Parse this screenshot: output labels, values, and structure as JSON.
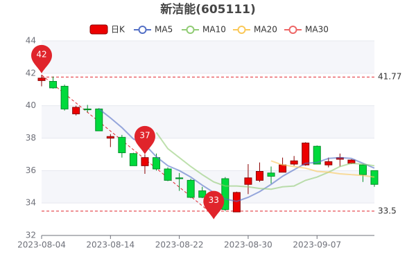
{
  "chart_data": {
    "type": "candlestick",
    "title": "新洁能(605111)",
    "categories": [
      "2023-08-04",
      null,
      null,
      null,
      null,
      null,
      "2023-08-14",
      null,
      null,
      null,
      null,
      null,
      "2023-08-22",
      null,
      null,
      null,
      null,
      null,
      "2023-08-30",
      null,
      null,
      null,
      null,
      null,
      "2023-09-07",
      null,
      null,
      null,
      null,
      null
    ],
    "candle": {
      "name": "日K",
      "up_color": "#ec0000",
      "down_color": "#00da3c",
      "up_border": "#8a0000",
      "down_border": "#008f28",
      "open": [
        41.55,
        41.5,
        41.2,
        39.5,
        39.8,
        39.8,
        38.0,
        38.05,
        37.05,
        36.3,
        36.8,
        36.1,
        35.55,
        35.4,
        34.75,
        34.35,
        35.5,
        33.45,
        35.15,
        35.4,
        35.85,
        35.9,
        36.4,
        36.35,
        37.5,
        36.35,
        36.7,
        36.45,
        36.35,
        36.0
      ],
      "close": [
        41.7,
        41.1,
        39.8,
        39.9,
        39.75,
        38.45,
        38.1,
        37.1,
        36.3,
        36.8,
        36.1,
        35.4,
        35.5,
        34.35,
        34.35,
        33.6,
        33.6,
        34.65,
        35.55,
        35.95,
        35.65,
        36.35,
        36.6,
        37.7,
        36.4,
        36.55,
        36.8,
        36.65,
        35.75,
        35.15
      ],
      "low": [
        41.2,
        41.05,
        39.7,
        39.4,
        39.6,
        38.45,
        37.45,
        36.8,
        36.3,
        35.8,
        36.0,
        35.35,
        34.75,
        34.3,
        34.3,
        33.25,
        33.5,
        33.45,
        34.55,
        35.3,
        35.2,
        35.9,
        36.3,
        36.3,
        36.4,
        36.2,
        36.25,
        36.4,
        35.3,
        35.0
      ],
      "high": [
        41.9,
        41.8,
        41.3,
        40.0,
        40.05,
        39.85,
        38.25,
        38.2,
        37.1,
        37.0,
        37.05,
        36.2,
        35.85,
        35.5,
        35.0,
        34.5,
        35.6,
        34.7,
        36.4,
        36.5,
        36.25,
        36.8,
        36.9,
        37.75,
        37.55,
        36.8,
        37.05,
        36.7,
        36.4,
        36.0
      ]
    },
    "series": [
      {
        "name": "MA5",
        "color": "#5470c6",
        "values": [
          null,
          null,
          null,
          null,
          null,
          39.8,
          39.25,
          38.65,
          37.95,
          37.6,
          36.85,
          36.3,
          36.0,
          35.6,
          35.1,
          34.65,
          34.25,
          34.1,
          34.35,
          34.7,
          35.15,
          35.65,
          36.05,
          36.45,
          36.5,
          36.75,
          36.8,
          36.75,
          36.45,
          36.15
        ]
      },
      {
        "name": "MA10",
        "color": "#91cc75",
        "values": [
          null,
          null,
          null,
          null,
          null,
          null,
          null,
          null,
          null,
          null,
          38.35,
          37.35,
          36.8,
          36.25,
          35.75,
          35.3,
          35.05,
          35.05,
          35.0,
          34.9,
          34.85,
          35.0,
          35.05,
          35.4,
          35.6,
          35.9,
          36.25,
          36.45,
          36.4,
          36.3
        ]
      },
      {
        "name": "MA20",
        "color": "#fac858",
        "values": [
          null,
          null,
          null,
          null,
          null,
          null,
          null,
          null,
          null,
          null,
          null,
          null,
          null,
          null,
          null,
          null,
          null,
          null,
          null,
          null,
          36.6,
          36.35,
          36.25,
          36.15,
          35.95,
          35.9,
          35.8,
          35.75,
          35.7,
          35.6
        ]
      },
      {
        "name": "MA30",
        "color": "#ee6666",
        "values": [
          null,
          null,
          null,
          null,
          null,
          null,
          null,
          null,
          null,
          null,
          null,
          null,
          null,
          null,
          null,
          null,
          null,
          null,
          null,
          null,
          null,
          null,
          null,
          null,
          null,
          null,
          null,
          null,
          null,
          null
        ]
      }
    ],
    "mark_points": [
      {
        "index": 0,
        "value": 42
      },
      {
        "index": 9,
        "value": 37
      },
      {
        "index": 15,
        "value": 33
      }
    ],
    "mark_lines": [
      41.77,
      33.5
    ],
    "mark_color": "#e0242b",
    "ylim": [
      32,
      44
    ],
    "yticks": [
      32,
      34,
      36,
      38,
      40,
      42,
      44
    ],
    "grid": true
  }
}
